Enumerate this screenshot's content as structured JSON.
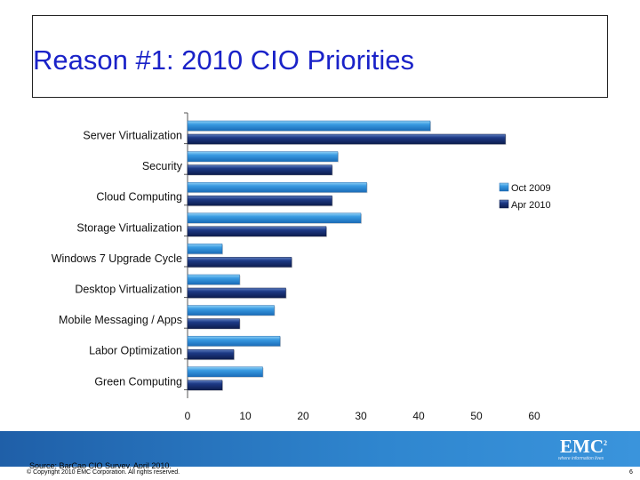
{
  "title": "Reason #1: 2010 CIO Priorities",
  "source_note": "Source: BarCap CIO Survey, April 2010.",
  "copyright": "© Copyright 2010 EMC Corporation. All rights reserved.",
  "page_number": "6",
  "logo": {
    "text": "EMC",
    "superscript": "2",
    "tagline": "where information lives"
  },
  "colors": {
    "title": "#1a22c8",
    "oct_2009": "#2e8fd8",
    "apr_2010": "#15306e",
    "band": "#2f86cf"
  },
  "chart_data": {
    "type": "bar",
    "orientation": "horizontal",
    "categories": [
      "Server Virtualization",
      "Security",
      "Cloud Computing",
      "Storage Virtualization",
      "Windows 7 Upgrade Cycle",
      "Desktop Virtualization",
      "Mobile Messaging / Apps",
      "Labor Optimization",
      "Green Computing"
    ],
    "series": [
      {
        "name": "Oct 2009",
        "values": [
          42,
          26,
          31,
          30,
          6,
          9,
          15,
          16,
          13
        ]
      },
      {
        "name": "Apr 2010",
        "values": [
          55,
          25,
          25,
          24,
          18,
          17,
          9,
          8,
          6
        ]
      }
    ],
    "xlim": [
      0,
      60
    ],
    "xticks": [
      "0",
      "10",
      "20",
      "30",
      "40",
      "50",
      "60"
    ],
    "grid": false,
    "legend_position": "right"
  }
}
